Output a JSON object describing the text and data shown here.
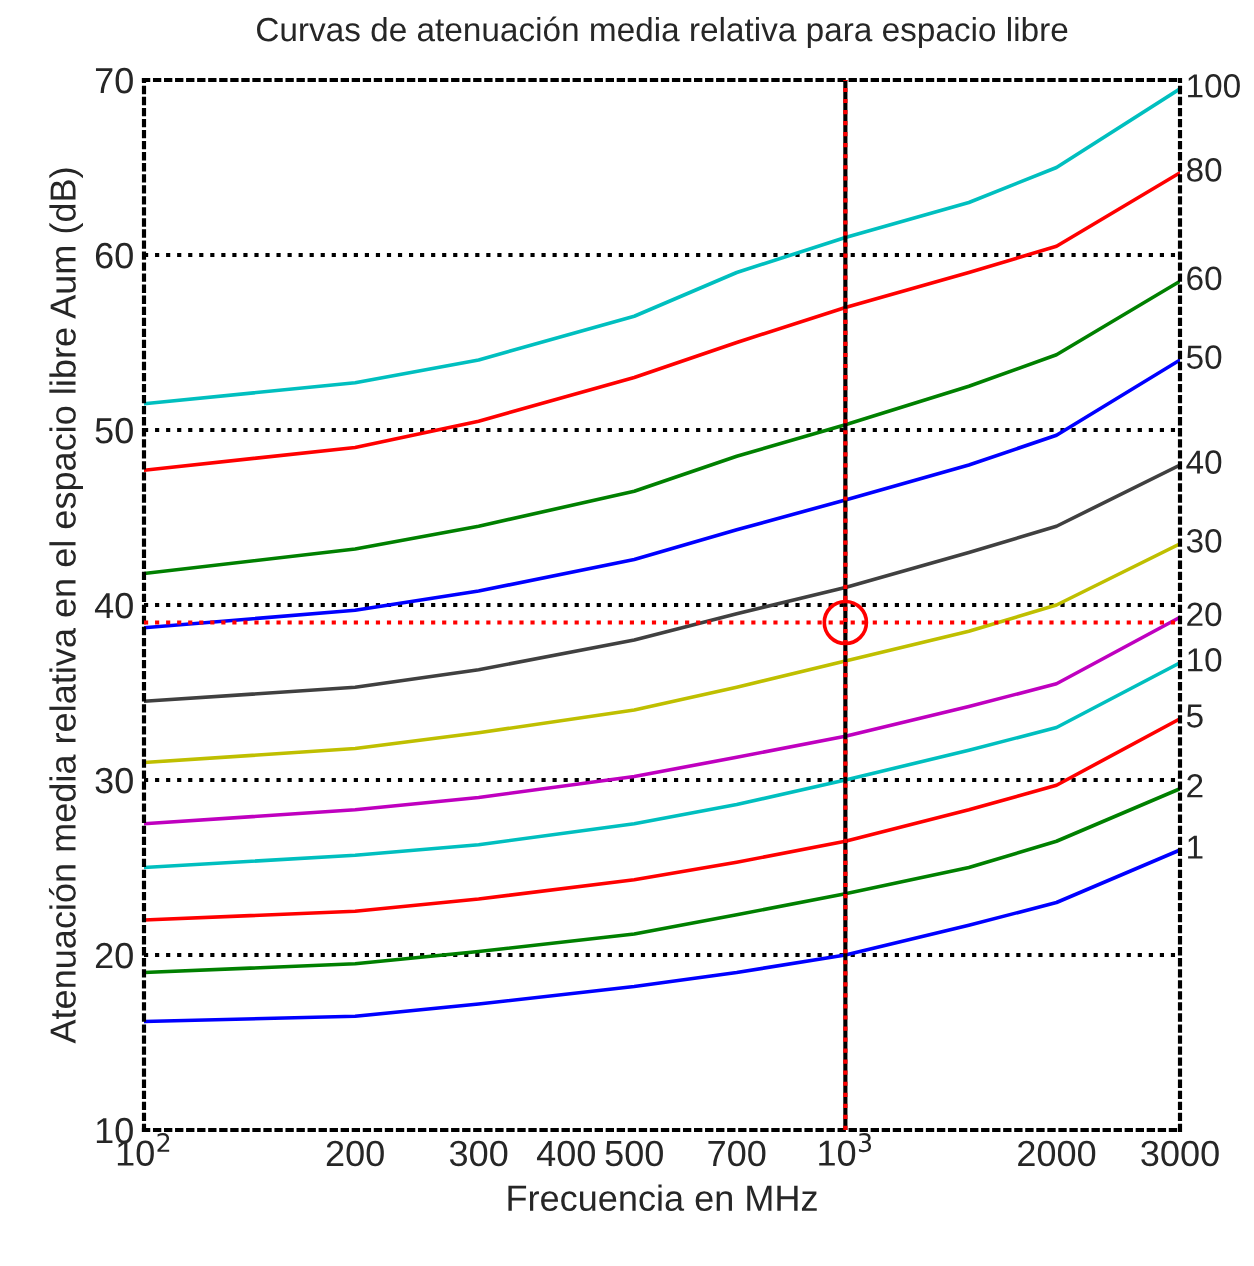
{
  "chart_data": {
    "type": "line",
    "title": "Curvas de atenuación media relativa para espacio libre",
    "xlabel": "Frecuencia en MHz",
    "ylabel": "Atenuación media relativa en el espacio libre Aum (dB)",
    "log": "x",
    "grid": "y",
    "legend": false,
    "marker": "none",
    "line_style": "solid",
    "xlim": [
      100,
      3000
    ],
    "ylim": [
      10,
      70
    ],
    "xticks": [
      {
        "value": 100,
        "label": "10$^{2}$"
      },
      200,
      300,
      400,
      500,
      700,
      {
        "value": 1000,
        "label": "10$^{3}$"
      },
      2000,
      3000
    ],
    "yticks": [
      10,
      20,
      30,
      40,
      50,
      60,
      70
    ],
    "x": [
      100,
      200,
      300,
      500,
      700,
      1000,
      1500,
      2000,
      3000
    ],
    "series": [
      {
        "name": "100",
        "color": "#00bfbf",
        "values": [
          51.5,
          52.7,
          54,
          56.5,
          59,
          61,
          63,
          65,
          69.5
        ]
      },
      {
        "name": "80",
        "color": "#ff0000",
        "values": [
          47.7,
          49,
          50.5,
          53,
          55,
          57,
          59,
          60.5,
          64.7
        ]
      },
      {
        "name": "60",
        "color": "#008000",
        "values": [
          41.8,
          43.2,
          44.5,
          46.5,
          48.5,
          50.3,
          52.5,
          54.3,
          58.5
        ]
      },
      {
        "name": "50",
        "color": "#0000ff",
        "values": [
          38.7,
          39.7,
          40.8,
          42.6,
          44.3,
          46,
          48,
          49.7,
          54
        ]
      },
      {
        "name": "40",
        "color": "#404040",
        "values": [
          34.5,
          35.3,
          36.3,
          38,
          39.5,
          41,
          43,
          44.5,
          48
        ]
      },
      {
        "name": "30",
        "color": "#bfbf00",
        "values": [
          31,
          31.8,
          32.7,
          34,
          35.3,
          36.8,
          38.5,
          40,
          43.5
        ]
      },
      {
        "name": "20",
        "color": "#bf00bf",
        "values": [
          27.5,
          28.3,
          29,
          30.2,
          31.3,
          32.5,
          34.2,
          35.5,
          39.3
        ]
      },
      {
        "name": "10",
        "color": "#00bfbf",
        "values": [
          25,
          25.7,
          26.3,
          27.5,
          28.6,
          30,
          31.7,
          33,
          36.7
        ]
      },
      {
        "name": "5",
        "color": "#ff0000",
        "values": [
          22,
          22.5,
          23.2,
          24.3,
          25.3,
          26.5,
          28.3,
          29.7,
          33.5
        ]
      },
      {
        "name": "2",
        "color": "#008000",
        "values": [
          19,
          19.5,
          20.2,
          21.2,
          22.3,
          23.5,
          25,
          26.5,
          29.5
        ]
      },
      {
        "name": "1",
        "color": "#0000ff",
        "values": [
          16.2,
          16.5,
          17.2,
          18.2,
          19,
          20,
          21.7,
          23,
          26
        ]
      },
      {
        "type": "scatter",
        "color": "#ff0000",
        "marker": "circle",
        "x": [
          1000
        ],
        "values": [
          39
        ]
      }
    ],
    "ref_lines": [
      {
        "axis": "x",
        "value": 1000,
        "color": "#000000",
        "line_style": "solid"
      },
      {
        "axis": "x",
        "value": 1000,
        "color": "#ff0000",
        "line_style": "dotted"
      },
      {
        "axis": "y",
        "value": 39,
        "color": "#ff0000",
        "line_style": "dotted"
      }
    ]
  }
}
